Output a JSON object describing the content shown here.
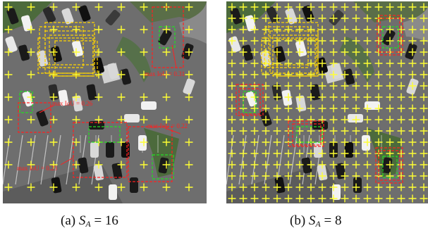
{
  "figure": {
    "panels": [
      {
        "id": "a",
        "caption_prefix": "(a)",
        "symbol": "S",
        "subscript": "A",
        "operator": "=",
        "value": "16",
        "annotations": [
          {
            "text": "max IoU = 0.31"
          },
          {
            "text": "max IoU = 0.26"
          },
          {
            "text": "max IoU = 0.22"
          },
          {
            "text": "max IoU = 0.23"
          }
        ]
      },
      {
        "id": "b",
        "caption_prefix": "(b)",
        "symbol": "S",
        "subscript": "A",
        "operator": "=",
        "value": "8",
        "annotations": []
      }
    ],
    "colors": {
      "anchor_cross": "#ffff33",
      "anchor_box": "#ffd400",
      "ground_truth_box": "#22dd22",
      "best_anchor_box": "#ff2020",
      "asphalt": "#6e6e6e",
      "grass": "#4c6a3c"
    }
  }
}
